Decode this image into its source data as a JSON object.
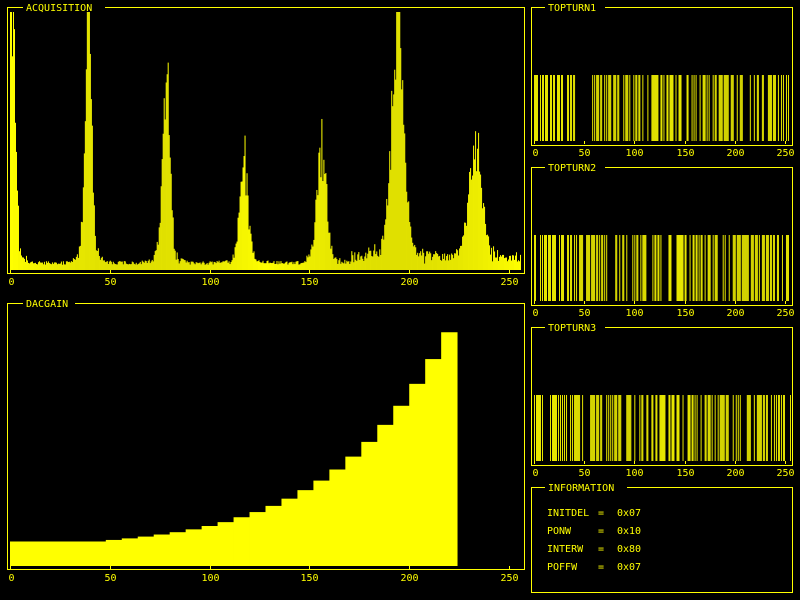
{
  "colors": {
    "foreground": "#ffff00",
    "background": "#000000"
  },
  "panels": {
    "acquisition": {
      "title": "ACQUISITION"
    },
    "dacgain": {
      "title": "DACGAIN"
    },
    "topturn1": {
      "title": "TOPTURN1"
    },
    "topturn2": {
      "title": "TOPTURN2"
    },
    "topturn3": {
      "title": "TOPTURN3"
    },
    "information": {
      "title": "INFORMATION",
      "lines": [
        {
          "label": "INITDEL",
          "value": "0x07"
        },
        {
          "label": "PONW",
          "value": "0x10"
        },
        {
          "label": "INTERW",
          "value": "0x80"
        },
        {
          "label": "POFFW",
          "value": "0x07"
        }
      ]
    }
  },
  "chart_data": [
    {
      "id": "acquisition",
      "type": "bar",
      "title": "ACQUISITION",
      "xlim": [
        0,
        256
      ],
      "ylim": [
        0,
        1
      ],
      "xticks": [
        0,
        50,
        100,
        150,
        200,
        250
      ],
      "peaks": [
        {
          "center": 1,
          "height": 0.98,
          "width": 1.5
        },
        {
          "center": 39,
          "height": 0.97,
          "width": 1.6
        },
        {
          "center": 78,
          "height": 0.71,
          "width": 1.8
        },
        {
          "center": 117,
          "height": 0.39,
          "width": 2.0
        },
        {
          "center": 156,
          "height": 0.43,
          "width": 2.2
        },
        {
          "center": 194,
          "height": 0.84,
          "width": 3.0
        },
        {
          "center": 233,
          "height": 0.43,
          "width": 3.0
        }
      ],
      "baseline": 0.02
    },
    {
      "id": "dacgain",
      "type": "bar",
      "title": "DACGAIN",
      "xlim": [
        0,
        256
      ],
      "ylim": [
        0,
        1
      ],
      "xticks": [
        0,
        50,
        100,
        150,
        200,
        250
      ],
      "bin_width": 8,
      "values": [
        0.095,
        0.095,
        0.095,
        0.095,
        0.095,
        0.095,
        0.101,
        0.107,
        0.114,
        0.122,
        0.131,
        0.142,
        0.155,
        0.17,
        0.189,
        0.209,
        0.233,
        0.261,
        0.294,
        0.331,
        0.374,
        0.424,
        0.481,
        0.547,
        0.621,
        0.706,
        0.802,
        0.906
      ]
    },
    {
      "id": "topturn1",
      "type": "bar",
      "title": "TOPTURN1",
      "xlim": [
        0,
        256
      ],
      "xticks": [
        0,
        50,
        100,
        150,
        200,
        250
      ],
      "seed": 11,
      "gaps": [
        [
          45,
          57
        ]
      ]
    },
    {
      "id": "topturn2",
      "type": "bar",
      "title": "TOPTURN2",
      "xlim": [
        0,
        256
      ],
      "xticks": [
        0,
        50,
        100,
        150,
        200,
        250
      ],
      "seed": 23,
      "gaps": [
        [
          73,
          80
        ]
      ]
    },
    {
      "id": "topturn3",
      "type": "bar",
      "title": "TOPTURN3",
      "xlim": [
        0,
        256
      ],
      "xticks": [
        0,
        50,
        100,
        150,
        200,
        250
      ],
      "seed": 37,
      "gaps": [
        [
          10,
          14
        ],
        [
          50,
          55
        ]
      ]
    }
  ]
}
